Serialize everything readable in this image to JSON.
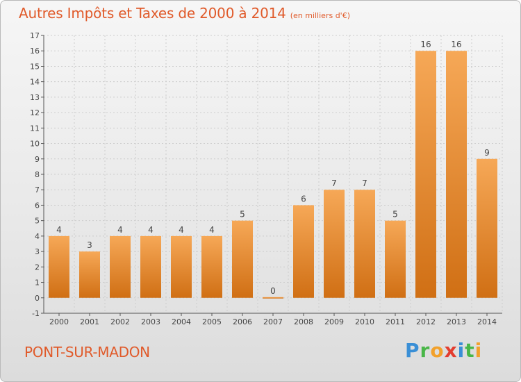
{
  "title": "Autres Impôts et Taxes de 2000 à 2014",
  "unit": "(en milliers d'€)",
  "location": "PONT-SUR-MADON",
  "brand": {
    "letters": [
      "P",
      "r",
      "o",
      "x",
      "i",
      "t",
      "i"
    ],
    "colors": [
      "#3a8fd6",
      "#49b648",
      "#f2a12b",
      "#e33d2f",
      "#3a8fd6",
      "#49b648",
      "#f2a12b"
    ]
  },
  "colors": {
    "bar_light": "#f6a857",
    "bar_dark": "#d06f14",
    "title": "#e05a2a",
    "grid": "#cccccc"
  },
  "chart_data": {
    "type": "bar",
    "title": "Autres Impôts et Taxes de 2000 à 2014",
    "ylabel": "(en milliers d'€)",
    "categories": [
      "2000",
      "2001",
      "2002",
      "2003",
      "2004",
      "2005",
      "2006",
      "2007",
      "2008",
      "2009",
      "2010",
      "2011",
      "2012",
      "2013",
      "2014"
    ],
    "values": [
      4,
      3,
      4,
      4,
      4,
      4,
      5,
      0,
      6,
      7,
      7,
      5,
      16,
      16,
      9
    ],
    "value_labels": [
      "4",
      "3",
      "4",
      "4",
      "4",
      "4",
      "5",
      "0",
      "6",
      "7",
      "7",
      "5",
      "16",
      "16",
      "9"
    ],
    "yticks": [
      "-1",
      "0",
      "1",
      "2",
      "3",
      "4",
      "5",
      "6",
      "7",
      "8",
      "9",
      "10",
      "11",
      "12",
      "13",
      "14",
      "15",
      "16",
      "17"
    ],
    "ylim": [
      -1,
      17
    ],
    "grid": true,
    "legend": "none"
  }
}
